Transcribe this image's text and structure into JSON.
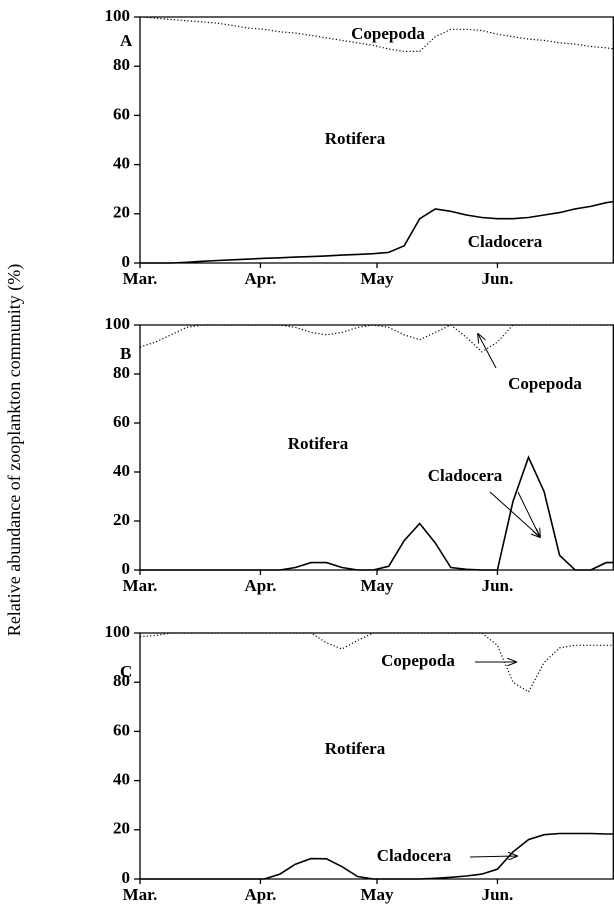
{
  "chart_data": [
    {
      "type": "line",
      "panel_label": "A",
      "annotation": "Rotifera",
      "x": [
        0,
        4,
        8,
        12,
        16,
        20,
        24,
        28,
        32,
        36,
        40,
        44,
        48,
        52,
        56,
        60,
        64,
        68,
        72,
        76,
        80,
        84,
        88,
        92,
        96,
        100,
        104,
        108,
        112,
        116,
        120,
        122
      ],
      "xlim": [
        0,
        122
      ],
      "xticks": [
        {
          "value": 0,
          "label": "Mar."
        },
        {
          "value": 31,
          "label": "Apr."
        },
        {
          "value": 61,
          "label": "May"
        },
        {
          "value": 92,
          "label": "Jun."
        }
      ],
      "ylim": [
        0,
        100
      ],
      "yticks": [
        0,
        20,
        40,
        60,
        80,
        100
      ],
      "series": [
        {
          "name": "Cladocera",
          "color": "#000000",
          "style": "solid",
          "values": [
            0,
            0,
            0,
            0.3,
            0.7,
            1,
            1.3,
            1.6,
            1.9,
            2.1,
            2.4,
            2.6,
            2.9,
            3.2,
            3.5,
            3.8,
            4.3,
            7,
            18,
            22,
            21,
            19.5,
            18.5,
            18,
            18,
            18.5,
            19.5,
            20.5,
            22,
            23,
            24.5,
            25
          ]
        },
        {
          "name": "Copepoda",
          "color": "#000000",
          "style": "dotted",
          "values": [
            100,
            99.5,
            99,
            98.5,
            98,
            97.5,
            96.5,
            95.5,
            95,
            94,
            93.5,
            92.5,
            91.5,
            90.5,
            89.5,
            88.5,
            87,
            86,
            86,
            92,
            95,
            95,
            94.5,
            93,
            92,
            91,
            90.5,
            89.5,
            89,
            88,
            87.5,
            87
          ]
        }
      ]
    },
    {
      "type": "line",
      "panel_label": "B",
      "annotation": "Rotifera",
      "x": [
        0,
        4,
        8,
        12,
        16,
        20,
        24,
        28,
        32,
        36,
        40,
        44,
        48,
        52,
        56,
        60,
        64,
        68,
        72,
        76,
        80,
        84,
        88,
        92,
        96,
        100,
        104,
        108,
        112,
        116,
        120,
        122
      ],
      "xlim": [
        0,
        122
      ],
      "xticks": [
        {
          "value": 0,
          "label": "Mar."
        },
        {
          "value": 31,
          "label": "Apr."
        },
        {
          "value": 61,
          "label": "May"
        },
        {
          "value": 92,
          "label": "Jun."
        }
      ],
      "ylim": [
        0,
        100
      ],
      "yticks": [
        0,
        20,
        40,
        60,
        80,
        100
      ],
      "series": [
        {
          "name": "Cladocera",
          "color": "#000000",
          "style": "solid",
          "values": [
            0,
            0,
            0,
            0,
            0,
            0,
            0,
            0,
            0,
            0,
            1,
            3,
            3,
            1,
            0,
            0,
            1.5,
            12,
            19,
            11,
            1,
            0.3,
            0,
            0,
            28,
            46,
            32,
            6,
            0,
            0,
            3,
            3
          ]
        },
        {
          "name": "Copepoda",
          "color": "#000000",
          "style": "dotted",
          "values": [
            91,
            93,
            96,
            99,
            100,
            100,
            100,
            100,
            100,
            100,
            99,
            97,
            96,
            97,
            99,
            100,
            99,
            96,
            94,
            97,
            100,
            95,
            89,
            93,
            100,
            100,
            100,
            100,
            100,
            100,
            100,
            100
          ]
        }
      ]
    },
    {
      "type": "line",
      "panel_label": "C",
      "annotation": "Rotifera",
      "x": [
        0,
        4,
        8,
        12,
        16,
        20,
        24,
        28,
        32,
        36,
        40,
        44,
        48,
        52,
        56,
        60,
        64,
        68,
        72,
        76,
        80,
        84,
        88,
        92,
        96,
        100,
        104,
        108,
        112,
        116,
        120,
        122
      ],
      "xlim": [
        0,
        122
      ],
      "xticks": [
        {
          "value": 0,
          "label": "Mar."
        },
        {
          "value": 31,
          "label": "Apr."
        },
        {
          "value": 61,
          "label": "May"
        },
        {
          "value": 92,
          "label": "Jun."
        }
      ],
      "ylim": [
        0,
        100
      ],
      "yticks": [
        0,
        20,
        40,
        60,
        80,
        100
      ],
      "series": [
        {
          "name": "Cladocera",
          "color": "#000000",
          "style": "solid",
          "values": [
            0,
            0,
            0,
            0,
            0,
            0,
            0,
            0,
            0,
            2,
            6,
            8.3,
            8.2,
            5,
            1,
            0,
            0,
            0,
            0,
            0.3,
            0.7,
            1.2,
            2,
            4,
            11,
            16,
            18,
            18.5,
            18.5,
            18.5,
            18.3,
            18.3
          ]
        },
        {
          "name": "Copepoda",
          "color": "#000000",
          "style": "dotted",
          "values": [
            98.5,
            99,
            100,
            100,
            100,
            100,
            100,
            100,
            100,
            100,
            100,
            100,
            96,
            93.5,
            97,
            100,
            100,
            100,
            100,
            100,
            100,
            100,
            100,
            95,
            80,
            76,
            88,
            94,
            95,
            95,
            95,
            95
          ]
        }
      ]
    }
  ],
  "y_axis_label": "Relative abundance of zooplankton community (%)"
}
